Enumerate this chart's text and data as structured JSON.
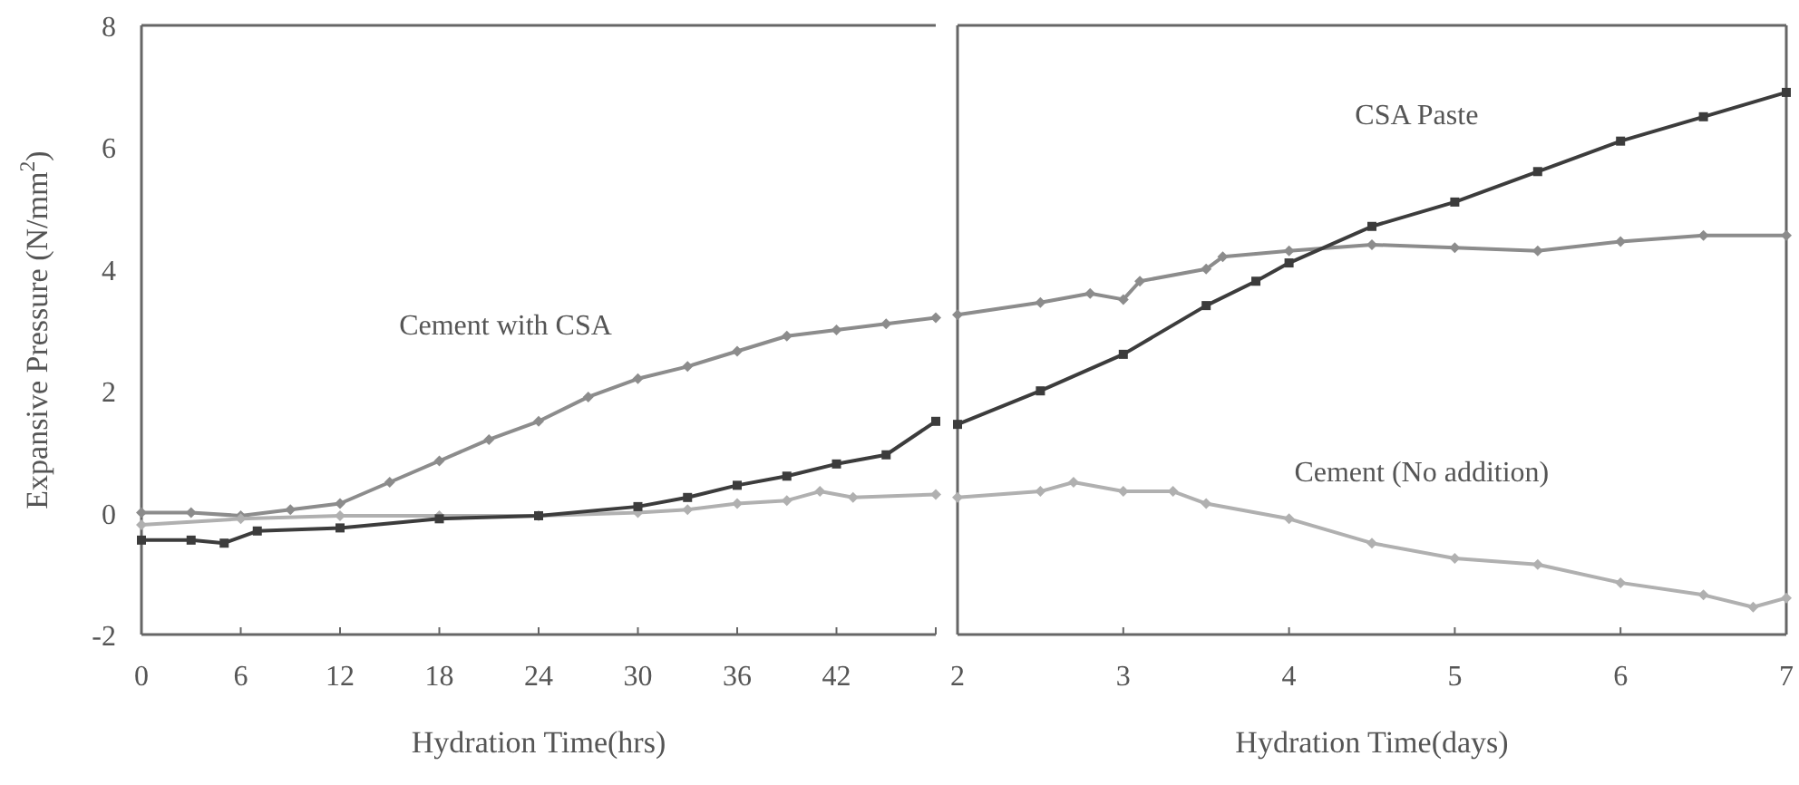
{
  "chart_data": [
    {
      "type": "line",
      "xlabel": "Hydration Time(hrs)",
      "ylabel": "Expansive Pressure (N/mm$^{2}$)",
      "xlim": [
        0,
        48
      ],
      "xticks": [
        0,
        6,
        12,
        18,
        24,
        30,
        36,
        42,
        {
          "value": 48,
          "label": null
        }
      ],
      "ylim": [
        -2,
        8
      ],
      "yticks": [
        -2,
        0,
        2,
        4,
        6,
        8
      ],
      "grid": false,
      "series": [
        {
          "name": "Cement with CSA",
          "color": "#8c8c8c",
          "marker": "diamond",
          "x": [
            0,
            3,
            6,
            9,
            12,
            15,
            18,
            21,
            24,
            27,
            30,
            33,
            36,
            39,
            42,
            45,
            48
          ],
          "values": [
            0,
            0,
            -0.05,
            0.05,
            0.15,
            0.5,
            0.85,
            1.2,
            1.5,
            1.9,
            2.2,
            2.4,
            2.65,
            2.9,
            3.0,
            3.1,
            3.2
          ]
        },
        {
          "color": "#b0b0b0",
          "marker": "diamond",
          "x": [
            0,
            6,
            12,
            18,
            24,
            30,
            33,
            36,
            39,
            41,
            43,
            48
          ],
          "values": [
            -0.2,
            -0.1,
            -0.05,
            -0.05,
            -0.05,
            0,
            0.05,
            0.15,
            0.2,
            0.35,
            0.25,
            0.3
          ]
        },
        {
          "color": "#3c3c3c",
          "marker": "square",
          "x": [
            0,
            3,
            5,
            7,
            12,
            18,
            24,
            30,
            33,
            36,
            39,
            42,
            45,
            48
          ],
          "values": [
            -0.45,
            -0.45,
            -0.5,
            -0.3,
            -0.25,
            -0.1,
            -0.05,
            0.1,
            0.25,
            0.45,
            0.6,
            0.8,
            0.95,
            1.5
          ]
        }
      ]
    },
    {
      "type": "line",
      "xlabel": "Hydration Time(days)",
      "xlim": [
        2,
        7
      ],
      "xticks": [
        2,
        3,
        4,
        5,
        6,
        7
      ],
      "ylim": [
        -2,
        8
      ],
      "tick_labels": "x",
      "grid": false,
      "series": [
        {
          "color": "#8c8c8c",
          "marker": "diamond",
          "x": [
            2,
            2.5,
            2.8,
            3,
            3.1,
            3.5,
            3.6,
            4,
            4.5,
            5,
            5.5,
            6,
            6.5,
            7
          ],
          "values": [
            3.25,
            3.45,
            3.6,
            3.5,
            3.8,
            4.0,
            4.2,
            4.3,
            4.4,
            4.35,
            4.3,
            4.45,
            4.55,
            4.55
          ]
        },
        {
          "name": "Cement (No addition)",
          "color": "#b0b0b0",
          "marker": "diamond",
          "x": [
            2,
            2.5,
            2.7,
            3,
            3.3,
            3.5,
            4,
            4.5,
            5,
            5.5,
            6,
            6.5,
            6.8,
            7
          ],
          "values": [
            0.25,
            0.35,
            0.5,
            0.35,
            0.35,
            0.15,
            -0.1,
            -0.5,
            -0.75,
            -0.85,
            -1.15,
            -1.35,
            -1.55,
            -1.4
          ]
        },
        {
          "name": "CSA Paste",
          "color": "#3c3c3c",
          "marker": "square",
          "x": [
            2,
            2.5,
            3,
            3.5,
            3.8,
            4,
            4.5,
            5,
            5.5,
            6,
            6.5,
            7
          ],
          "values": [
            1.45,
            2.0,
            2.6,
            3.4,
            3.8,
            4.1,
            4.7,
            5.1,
            5.6,
            6.1,
            6.5,
            6.9
          ]
        }
      ]
    }
  ]
}
